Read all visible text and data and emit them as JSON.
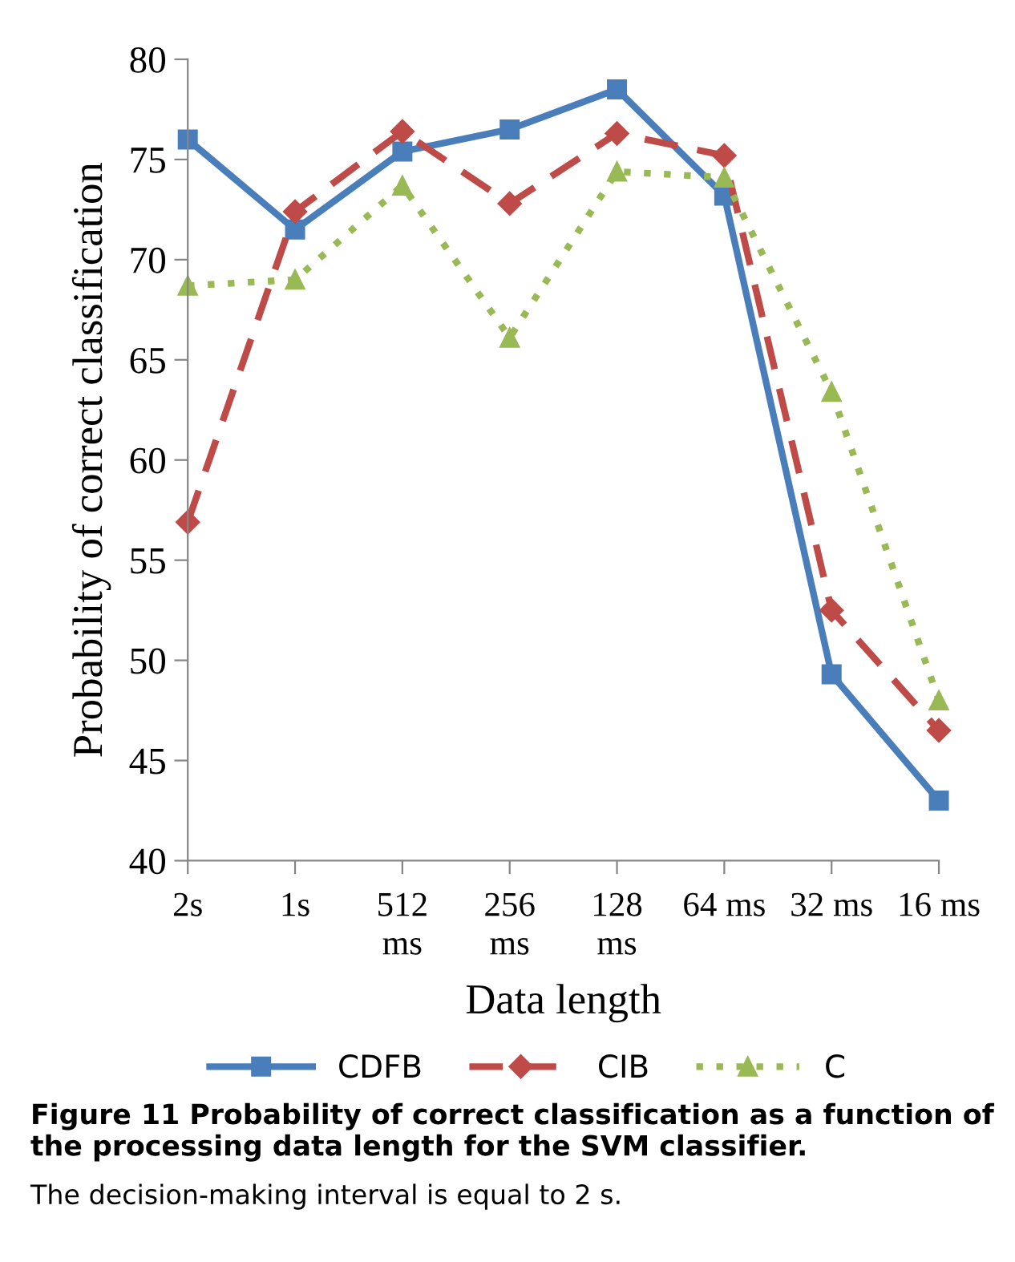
{
  "chart_data": {
    "type": "line",
    "xlabel": "Data length",
    "ylabel": "Probability of correct classification",
    "categories": [
      "2s",
      "1s",
      "512\nms",
      "256\nms",
      "128\nms",
      "64 ms",
      "32 ms",
      "16 ms"
    ],
    "series": [
      {
        "name": "CDFB",
        "color": "#4a7ebb",
        "marker": "square",
        "line_style": "solid",
        "values": [
          76.0,
          71.5,
          75.4,
          76.5,
          78.5,
          73.2,
          49.3,
          43.0
        ]
      },
      {
        "name": "CIB",
        "color": "#be4b48",
        "marker": "diamond",
        "line_style": "dashed",
        "values": [
          56.9,
          72.4,
          76.4,
          72.8,
          76.3,
          75.2,
          52.5,
          46.5
        ]
      },
      {
        "name": "C",
        "color": "#98b954",
        "marker": "triangle",
        "line_style": "dotted",
        "values": [
          68.7,
          69.0,
          73.7,
          66.1,
          74.4,
          74.1,
          63.4,
          48.0
        ]
      }
    ],
    "ylim": [
      40,
      80
    ],
    "yticks": [
      40,
      45,
      50,
      55,
      60,
      65,
      70,
      75,
      80
    ],
    "grid": false,
    "legend": "bottom",
    "annotations": [
      "Figure 11 Probability of correct classification as a function of the processing data length for the SVM classifier.",
      "The decision-making interval is equal to 2 s."
    ]
  }
}
